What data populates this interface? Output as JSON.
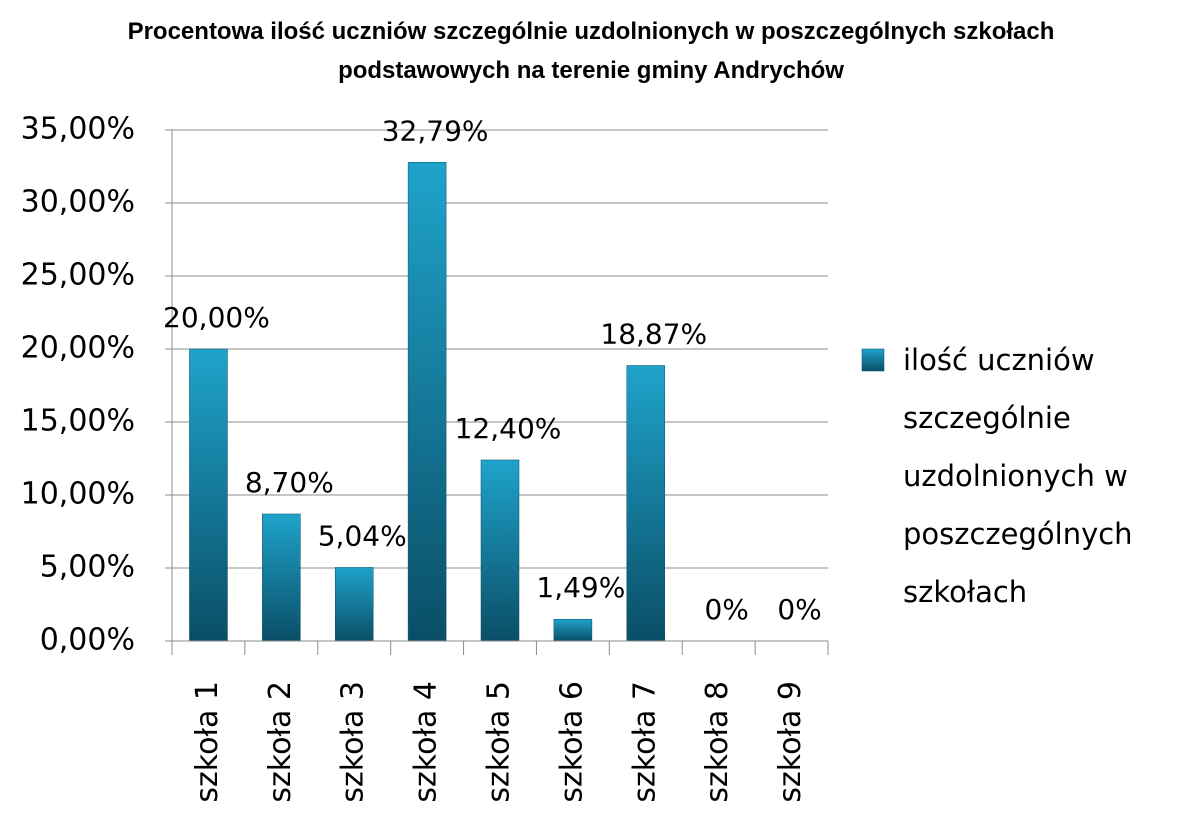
{
  "chart_data": {
    "type": "bar",
    "title": "Procentowa ilość uczniów szczególnie uzdolnionych w poszczególnych szkołach podstawowych na terenie gminy Andrychów",
    "categories": [
      "szkoła 1",
      "szkoła 2",
      "szkoła 3",
      "szkoła 4",
      "szkoła 5",
      "szkoła 6",
      "szkoła 7",
      "szkoła 8",
      "szkoła 9"
    ],
    "series": [
      {
        "name": "ilość uczniów szczególnie uzdolnionych w poszczególnych szkołach",
        "color": "#1fa3cb",
        "values": [
          20,
          8.7,
          5.04,
          32.79,
          12.4,
          1.49,
          18.87,
          0,
          0
        ],
        "value_labels": [
          "20,00%",
          "8,70%",
          "5,04%",
          "32,79%",
          "12,40%",
          "1,49%",
          "18,87%",
          "0%",
          "0%"
        ]
      }
    ],
    "ylim": [
      0,
      35
    ],
    "yticks": [
      {
        "value": 0,
        "label": "0,00%"
      },
      {
        "value": 5,
        "label": "5,00%"
      },
      {
        "value": 10,
        "label": "10,00%"
      },
      {
        "value": 15,
        "label": "15,00%"
      },
      {
        "value": 20,
        "label": "20,00%"
      },
      {
        "value": 25,
        "label": "25,00%"
      },
      {
        "value": 30,
        "label": "30,00%"
      },
      {
        "value": 35,
        "label": "35,00%"
      }
    ],
    "grid": true,
    "legend": "right"
  }
}
